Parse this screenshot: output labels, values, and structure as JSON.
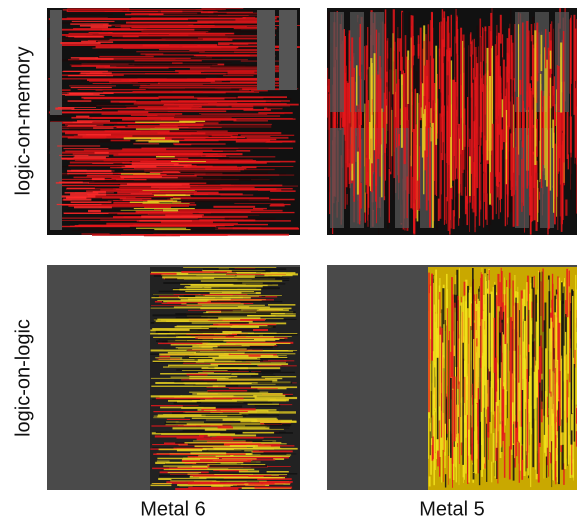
{
  "row_labels": [
    "logic-on-memory",
    "logic-on-logic"
  ],
  "column_labels": [
    "Metal 6",
    "Metal 5"
  ]
}
